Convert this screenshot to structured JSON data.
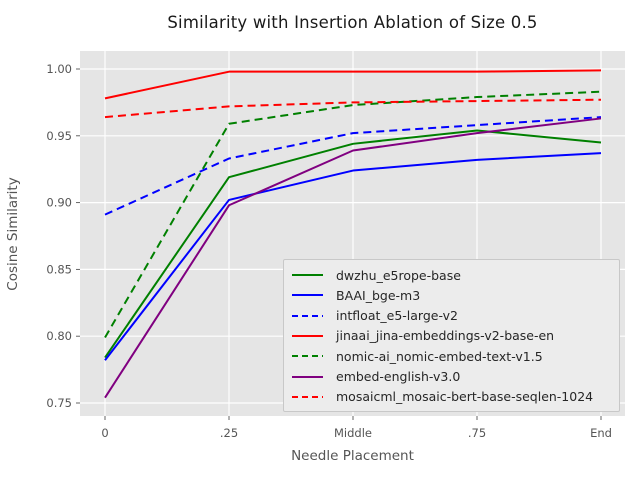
{
  "chart_data": {
    "type": "line",
    "title": "Similarity with Insertion Ablation of Size 0.5",
    "xlabel": "Needle Placement",
    "ylabel": "Cosine Similarity",
    "categories": [
      "0",
      ".25",
      "Middle",
      ".75",
      "End"
    ],
    "y_ticks": [
      0.75,
      0.8,
      0.85,
      0.9,
      0.95,
      1.0
    ],
    "y_tick_labels": [
      "0.75",
      "0.80",
      "0.85",
      "0.90",
      "0.95",
      "1.00"
    ],
    "ylim": [
      0.732,
      1.017
    ],
    "grid": true,
    "legend_position": "lower-right-inside",
    "colors": {
      "plot_background": "#e5e5e5",
      "grid": "#ffffff",
      "tick_labels": "#555555",
      "title_text": "#1a1a1a",
      "legend_background": "#ececec",
      "legend_border": "#c8c8c8"
    },
    "series": [
      {
        "name": "dwzhu_e5rope-base",
        "color": "#008000",
        "dash": "solid",
        "values": [
          0.784,
          0.919,
          0.944,
          0.954,
          0.945
        ]
      },
      {
        "name": "BAAI_bge-m3",
        "color": "#0000ff",
        "dash": "solid",
        "values": [
          0.782,
          0.902,
          0.924,
          0.932,
          0.937
        ]
      },
      {
        "name": "intfloat_e5-large-v2",
        "color": "#0000ff",
        "dash": "dashed",
        "values": [
          0.891,
          0.933,
          0.952,
          0.958,
          0.964
        ]
      },
      {
        "name": "jinaai_jina-embeddings-v2-base-en",
        "color": "#ff0000",
        "dash": "solid",
        "values": [
          0.978,
          0.998,
          0.998,
          0.998,
          0.999
        ]
      },
      {
        "name": "nomic-ai_nomic-embed-text-v1.5",
        "color": "#008000",
        "dash": "dashed",
        "values": [
          0.799,
          0.959,
          0.973,
          0.979,
          0.983
        ]
      },
      {
        "name": "embed-english-v3.0",
        "color": "#800080",
        "dash": "solid",
        "values": [
          0.754,
          0.898,
          0.939,
          0.952,
          0.963
        ]
      },
      {
        "name": "mosaicml_mosaic-bert-base-seqlen-1024",
        "color": "#ff0000",
        "dash": "dashed",
        "values": [
          0.964,
          0.972,
          0.975,
          0.976,
          0.977
        ]
      }
    ]
  }
}
